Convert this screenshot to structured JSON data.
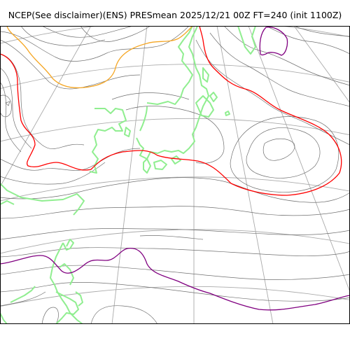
{
  "title": "NCEP(See disclaimer)(ENS) PRESmean 2025/12/21 00Z FT=240 (init 1100Z)",
  "colors": {
    "background": "#ffffff",
    "frame": "#000000",
    "graticule": "#aaaaaa",
    "isobar": "#707070",
    "coastline": "#90ee90",
    "contour_orange": "#f5a623",
    "contour_red": "#ff0000",
    "contour_purple": "#800080"
  }
}
